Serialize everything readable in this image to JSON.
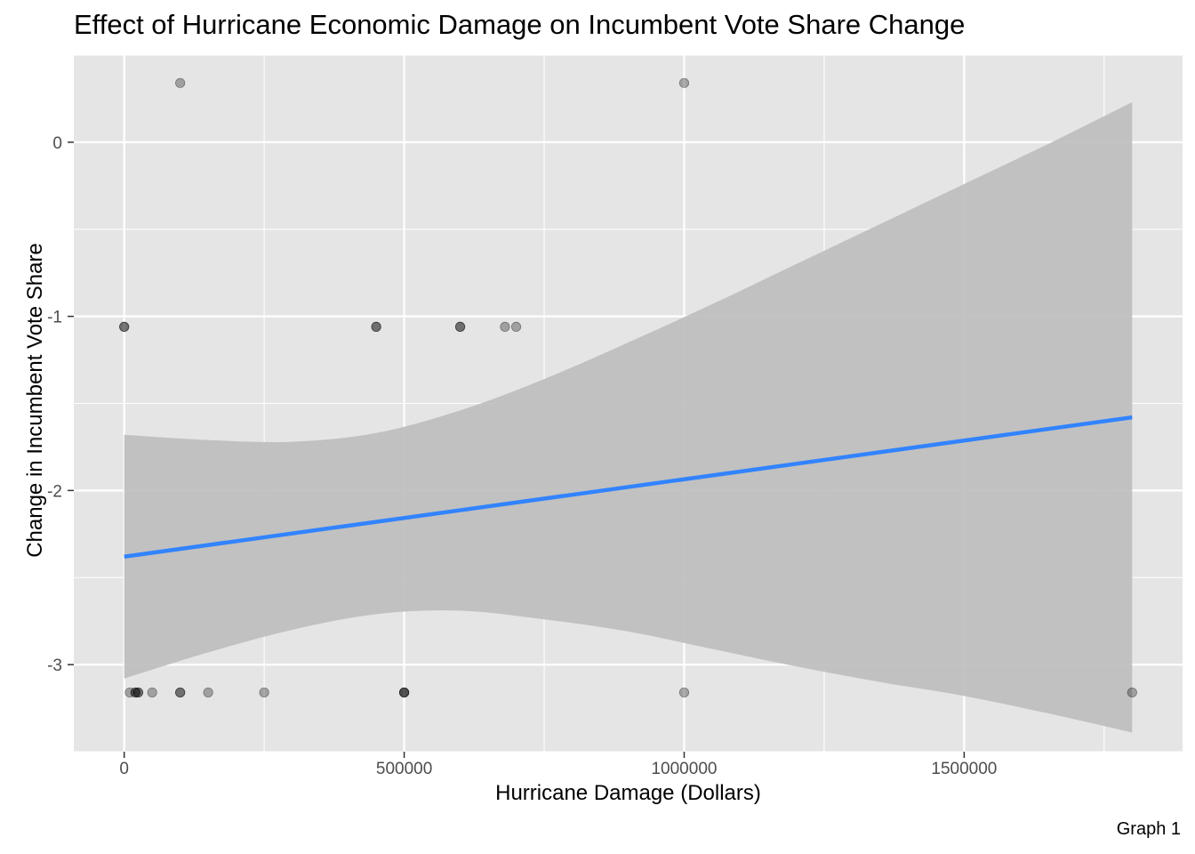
{
  "chart_data": {
    "type": "scatter",
    "title": "Effect of Hurricane Economic Damage on Incumbent Vote Share Change",
    "xlabel": "Hurricane Damage (Dollars)",
    "ylabel": "Change in Incumbent Vote Share",
    "caption": "Graph 1",
    "xlim": [
      -90000,
      1890000
    ],
    "ylim": [
      -3.5,
      0.5
    ],
    "x_ticks": [
      0,
      500000,
      1000000,
      1500000
    ],
    "x_tick_labels": [
      "0",
      "500000",
      "1000000",
      "1500000"
    ],
    "y_ticks": [
      0,
      -1,
      -2,
      -3
    ],
    "y_tick_labels": [
      "0",
      "-1",
      "-2",
      "-3"
    ],
    "grid": true,
    "point_color": "#000000",
    "line_color": "#3283fe",
    "band_color": "#bdbdbd",
    "panel_color": "#e5e5e5",
    "points": [
      {
        "x": 100000,
        "y": 0.34
      },
      {
        "x": 1000000,
        "y": 0.34
      },
      {
        "x": 0,
        "y": -1.06
      },
      {
        "x": 0,
        "y": -1.06
      },
      {
        "x": 450000,
        "y": -1.06
      },
      {
        "x": 450000,
        "y": -1.06
      },
      {
        "x": 600000,
        "y": -1.06
      },
      {
        "x": 600000,
        "y": -1.06
      },
      {
        "x": 680000,
        "y": -1.06
      },
      {
        "x": 700000,
        "y": -1.06
      },
      {
        "x": 10000,
        "y": -3.16
      },
      {
        "x": 20000,
        "y": -3.16
      },
      {
        "x": 20000,
        "y": -3.16
      },
      {
        "x": 25000,
        "y": -3.16
      },
      {
        "x": 25000,
        "y": -3.16
      },
      {
        "x": 50000,
        "y": -3.16
      },
      {
        "x": 100000,
        "y": -3.16
      },
      {
        "x": 100000,
        "y": -3.16
      },
      {
        "x": 150000,
        "y": -3.16
      },
      {
        "x": 250000,
        "y": -3.16
      },
      {
        "x": 500000,
        "y": -3.16
      },
      {
        "x": 500000,
        "y": -3.16
      },
      {
        "x": 500000,
        "y": -3.16
      },
      {
        "x": 1000000,
        "y": -3.16
      },
      {
        "x": 1800000,
        "y": -3.16
      }
    ],
    "fit_line": {
      "x": [
        0,
        1800000
      ],
      "y": [
        -2.38,
        -1.58
      ]
    },
    "confidence_band": {
      "x": [
        0,
        150000,
        300000,
        450000,
        600000,
        750000,
        900000,
        1050000,
        1200000,
        1350000,
        1500000,
        1650000,
        1800000
      ],
      "upper": [
        -1.68,
        -1.71,
        -1.72,
        -1.67,
        -1.54,
        -1.36,
        -1.15,
        -0.93,
        -0.7,
        -0.47,
        -0.24,
        -0.01,
        0.23
      ],
      "lower": [
        -3.08,
        -2.93,
        -2.8,
        -2.71,
        -2.69,
        -2.74,
        -2.81,
        -2.91,
        -3.01,
        -3.1,
        -3.18,
        -3.28,
        -3.39
      ]
    }
  }
}
